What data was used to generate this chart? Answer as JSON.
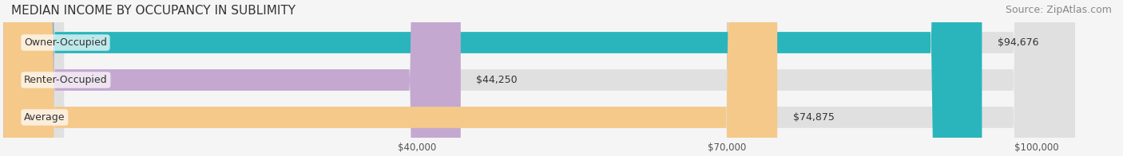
{
  "title": "MEDIAN INCOME BY OCCUPANCY IN SUBLIMITY",
  "source": "Source: ZipAtlas.com",
  "categories": [
    "Owner-Occupied",
    "Renter-Occupied",
    "Average"
  ],
  "values": [
    94676,
    44250,
    74875
  ],
  "labels": [
    "$94,676",
    "$44,250",
    "$74,875"
  ],
  "bar_colors": [
    "#2ab5bc",
    "#c4a8d0",
    "#f5c98a"
  ],
  "bar_edge_colors": [
    "#2ab5bc",
    "#c4a8d0",
    "#f5c98a"
  ],
  "x_ticks": [
    40000,
    70000,
    100000
  ],
  "x_tick_labels": [
    "$40,000",
    "$70,000",
    "$100,000"
  ],
  "xlim": [
    0,
    108000
  ],
  "background_color": "#f5f5f5",
  "bar_bg_color": "#e8e8e8",
  "title_fontsize": 11,
  "source_fontsize": 9,
  "label_fontsize": 9,
  "category_fontsize": 9
}
